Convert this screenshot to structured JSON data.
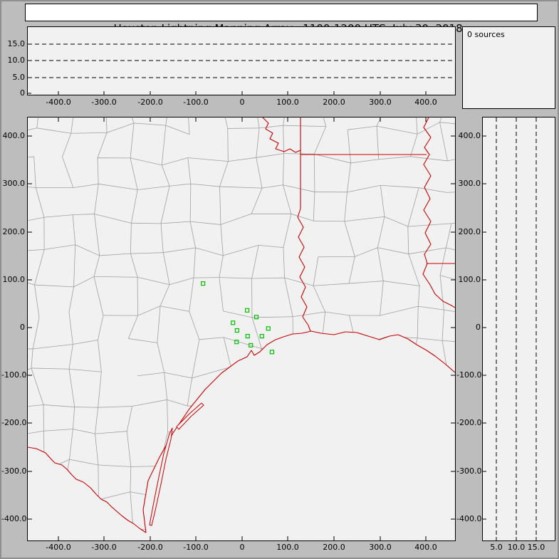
{
  "title": "Houston Lightning Mapping Array   1100-1200 UTC  July 30, 2018",
  "histogram_panel": {
    "label": "0 sources"
  },
  "top_panel": {
    "y_ticks": [
      "15.0",
      "10.0",
      "5.0",
      "0"
    ],
    "x_ticks": [
      "-400.0",
      "-300.0",
      "-200.0",
      "-100.0",
      "0",
      "100.0",
      "200.0",
      "300.0",
      "400.0"
    ]
  },
  "map_panel": {
    "y_ticks": [
      "400.0",
      "300.0",
      "200.0",
      "100.0",
      "0",
      "-100.0",
      "-200.0",
      "-300.0",
      "-400.0"
    ],
    "x_ticks": [
      "-400.0",
      "-300.0",
      "-200.0",
      "-100.0",
      "0",
      "100.0",
      "200.0",
      "300.0",
      "400.0"
    ]
  },
  "side_panel": {
    "y_ticks": [
      "400.0",
      "300.0",
      "200.0",
      "100.0",
      "0",
      "-100.0",
      "-200.0",
      "-300.0",
      "-400.0"
    ],
    "x_ticks": [
      "5.0",
      "10.0",
      "15.0"
    ]
  },
  "colors": {
    "background": "#bdbdbd",
    "panel_bg": "#f1f1f1",
    "county_line": "#a0a0a0",
    "state_border": "#cc0000",
    "station_marker": "#00c000",
    "dashed_gridline": "#000000"
  },
  "chart_data": [
    {
      "type": "scatter",
      "panel": "plan-view-map",
      "title": "Houston Lightning Mapping Array 1100-1200 UTC July 30, 2018",
      "xlim": [
        -440,
        465
      ],
      "ylim": [
        -445,
        440
      ],
      "x_ticks": [
        -400,
        -300,
        -200,
        -100,
        0,
        100,
        200,
        300,
        400
      ],
      "y_ticks": [
        400,
        300,
        200,
        100,
        0,
        -100,
        -200,
        -300,
        -400
      ],
      "grid": false,
      "series": [
        {
          "name": "LMA stations",
          "marker": "open-square",
          "color": "#00c000",
          "points_km": [
            [
              -85,
              92
            ],
            [
              11,
              36
            ],
            [
              31,
              22
            ],
            [
              -20,
              10
            ],
            [
              -11,
              -6
            ],
            [
              57,
              -2
            ],
            [
              12,
              -18
            ],
            [
              43,
              -18
            ],
            [
              -12,
              -30
            ],
            [
              19,
              -37
            ],
            [
              65,
              -51
            ]
          ]
        },
        {
          "name": "lightning sources",
          "count": 0,
          "points_km": []
        }
      ]
    },
    {
      "type": "scatter",
      "panel": "altitude-vs-east-west",
      "ylim": [
        0,
        20
      ],
      "y_ticks": [
        0,
        5,
        10,
        15
      ],
      "x_ticks": [
        -400,
        -300,
        -200,
        -100,
        0,
        100,
        200,
        300,
        400
      ],
      "dashed_levels_km": [
        5,
        10,
        15
      ],
      "points": []
    },
    {
      "type": "scatter",
      "panel": "altitude-vs-north-south",
      "xlim": [
        0,
        17
      ],
      "x_ticks": [
        5,
        10,
        15
      ],
      "y_ticks": [
        400,
        300,
        200,
        100,
        0,
        -100,
        -200,
        -300,
        -400
      ],
      "dashed_levels_km": [
        5,
        10,
        15
      ],
      "points": []
    },
    {
      "type": "histogram",
      "panel": "source-count",
      "label": "0 sources",
      "total_sources": 0,
      "points": []
    }
  ]
}
